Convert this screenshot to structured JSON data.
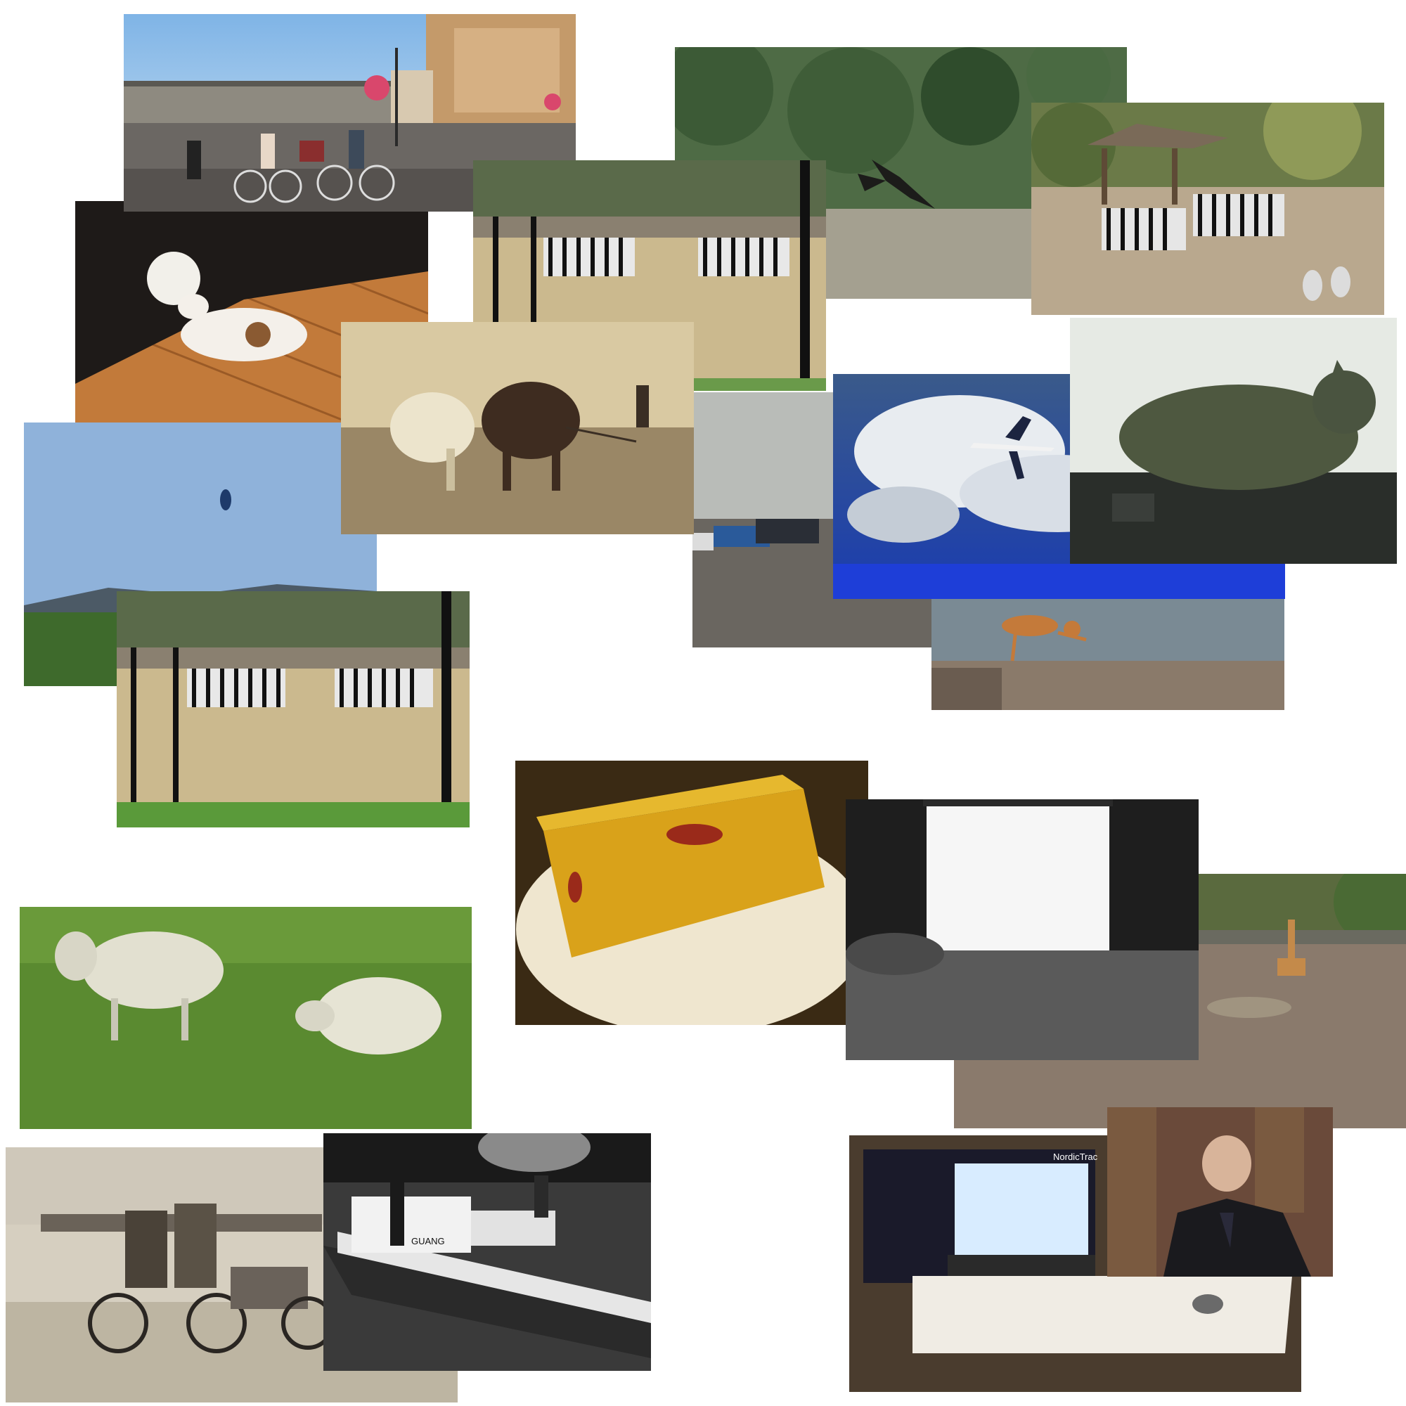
{
  "collage": {
    "photos": [
      {
        "id": "bikes",
        "subject": "cyclists on a town square with apartment buildings"
      },
      {
        "id": "dog-cake",
        "subject": "jack russell terrier sniffing a cake on a table"
      },
      {
        "id": "zebras-fence-top",
        "subject": "two zebras grazing behind a fence"
      },
      {
        "id": "vulture",
        "subject": "bird flying in front of pine trees"
      },
      {
        "id": "zebras-zoo",
        "subject": "two zebras in a zoo enclosure with a thatched hut"
      },
      {
        "id": "horses-plow",
        "subject": "sepia photo of two draft horses pulling a plow"
      },
      {
        "id": "kite-field",
        "subject": "kite in blue sky over a grassy field with hills"
      },
      {
        "id": "parking-lot",
        "subject": "cars parked in a foggy lot"
      },
      {
        "id": "airplane",
        "subject": "jet airplane against dramatic clouds and blue sky"
      },
      {
        "id": "cat-dashboard",
        "subject": "cat on a car dashboard"
      },
      {
        "id": "dog-stretch",
        "subject": "dog stretching on a seawall"
      },
      {
        "id": "zebras-fence-bottom",
        "subject": "two zebras grazing behind a fence"
      },
      {
        "id": "jelly-cake",
        "subject": "golden jelly cake on a plate"
      },
      {
        "id": "bedroom",
        "subject": "bed in front of a bright window"
      },
      {
        "id": "giraffe",
        "subject": "giraffe in a dirt zoo enclosure"
      },
      {
        "id": "sheep",
        "subject": "two sheep on green grass"
      },
      {
        "id": "motorcycles",
        "subject": "old photo of soldiers on motorcycles with sidecars"
      },
      {
        "id": "boat",
        "subject": "black and white photo of men on a small boat"
      },
      {
        "id": "laptop-treadmill",
        "subject": "laptop on a treadmill desk"
      },
      {
        "id": "man-webcam",
        "subject": "man in suit resting head on hand"
      }
    ],
    "visible_text": {
      "boat_name": "GUANG",
      "treadmill_brand": "NordicTrac"
    }
  }
}
